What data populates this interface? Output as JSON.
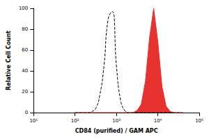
{
  "chart_data": {
    "type": "line",
    "x_label": "CD84 (purified) / GAM APC",
    "y_label": "Relative Cell Count",
    "log": "x",
    "grid": false,
    "xlim": [
      10,
      100000
    ],
    "xticks": [
      {
        "value": 10,
        "label": "10¹"
      },
      {
        "value": 100,
        "label": "10²"
      },
      {
        "value": 1000,
        "label": "10³"
      },
      {
        "value": 10000,
        "label": "10⁴"
      },
      {
        "value": 100000,
        "label": "10⁵"
      }
    ],
    "ylim": [
      0,
      100
    ],
    "yticks": [
      0,
      20,
      40,
      60,
      80,
      100
    ],
    "x": [
      100,
      126,
      158,
      200,
      251,
      316,
      398,
      501,
      631,
      794,
      1000,
      1259,
      1585,
      1995,
      2512,
      3162,
      3981,
      5012,
      6310,
      7943,
      10000,
      12589,
      15849,
      19953,
      25119,
      31623,
      39811
    ],
    "series": [
      {
        "type": "line",
        "line_style": "dashed",
        "color": "#000000",
        "values": [
          0,
          0,
          0,
          0,
          1,
          4,
          17,
          45,
          90,
          97,
          45,
          12,
          2,
          0,
          0,
          0,
          0,
          0,
          0,
          0,
          0,
          0,
          0,
          0,
          0,
          0,
          0
        ]
      },
      {
        "type": "area",
        "line_style": "solid",
        "color": "#e8322f",
        "values": [
          0,
          0,
          0,
          0,
          0,
          0,
          0,
          0,
          0,
          0,
          0,
          0,
          0,
          0,
          0,
          2,
          8,
          30,
          72,
          100,
          68,
          25,
          6,
          1,
          0,
          0,
          0
        ]
      }
    ]
  }
}
